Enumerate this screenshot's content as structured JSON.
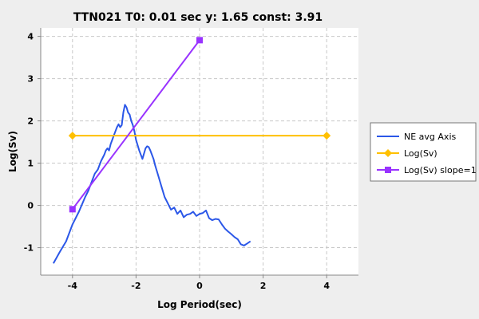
{
  "chart_data": {
    "type": "line",
    "title": "TTN021 T0: 0.01 sec  y: 1.65 const: 3.91",
    "xlabel": "Log Period(sec)",
    "ylabel": "Log(Sv)",
    "xlim": [
      -5.0,
      5.0
    ],
    "ylim": [
      -1.65,
      4.2
    ],
    "xticks": [
      -4,
      -2,
      0,
      2,
      4
    ],
    "yticks": [
      -1,
      0,
      1,
      2,
      3,
      4
    ],
    "grid": true,
    "legend_position": "right",
    "colors": {
      "background": "#eeeeee",
      "plot_background": "#ffffff",
      "grid": "#c8c8c8"
    },
    "series": [
      {
        "name": "NE avg Axis",
        "color": "#2b57e8",
        "marker": "none",
        "x": [
          -4.6,
          -4.4,
          -4.2,
          -4.0,
          -3.8,
          -3.6,
          -3.5,
          -3.4,
          -3.3,
          -3.2,
          -3.1,
          -3.0,
          -2.95,
          -2.9,
          -2.85,
          -2.8,
          -2.75,
          -2.7,
          -2.65,
          -2.6,
          -2.55,
          -2.5,
          -2.45,
          -2.4,
          -2.35,
          -2.3,
          -2.25,
          -2.2,
          -2.15,
          -2.1,
          -2.05,
          -2.0,
          -1.9,
          -1.8,
          -1.7,
          -1.65,
          -1.6,
          -1.55,
          -1.5,
          -1.45,
          -1.4,
          -1.3,
          -1.2,
          -1.1,
          -1.0,
          -0.9,
          -0.8,
          -0.7,
          -0.6,
          -0.5,
          -0.4,
          -0.3,
          -0.2,
          -0.1,
          0.0,
          0.1,
          0.2,
          0.3,
          0.4,
          0.5,
          0.6,
          0.7,
          0.8,
          0.9,
          1.0,
          1.1,
          1.2,
          1.3,
          1.4,
          1.5,
          1.6
        ],
        "y": [
          -1.37,
          -1.1,
          -0.85,
          -0.45,
          -0.15,
          0.2,
          0.35,
          0.55,
          0.75,
          0.85,
          1.05,
          1.2,
          1.3,
          1.35,
          1.3,
          1.45,
          1.55,
          1.65,
          1.75,
          1.85,
          1.92,
          1.85,
          1.9,
          2.2,
          2.38,
          2.32,
          2.2,
          2.15,
          2.0,
          1.9,
          1.75,
          1.55,
          1.3,
          1.1,
          1.35,
          1.4,
          1.38,
          1.3,
          1.2,
          1.1,
          0.95,
          0.7,
          0.45,
          0.2,
          0.05,
          -0.1,
          -0.05,
          -0.2,
          -0.12,
          -0.28,
          -0.22,
          -0.2,
          -0.15,
          -0.25,
          -0.2,
          -0.18,
          -0.12,
          -0.3,
          -0.35,
          -0.32,
          -0.33,
          -0.45,
          -0.55,
          -0.62,
          -0.68,
          -0.75,
          -0.8,
          -0.92,
          -0.95,
          -0.9,
          -0.85
        ]
      },
      {
        "name": "Log(Sv)",
        "color": "#ffc000",
        "marker": "diamond",
        "x": [
          -4,
          4
        ],
        "y": [
          1.65,
          1.65
        ]
      },
      {
        "name": "Log(Sv) slope=1",
        "color": "#9933ff",
        "marker": "square",
        "x": [
          -4,
          0
        ],
        "y": [
          -0.09,
          3.91
        ]
      }
    ]
  }
}
